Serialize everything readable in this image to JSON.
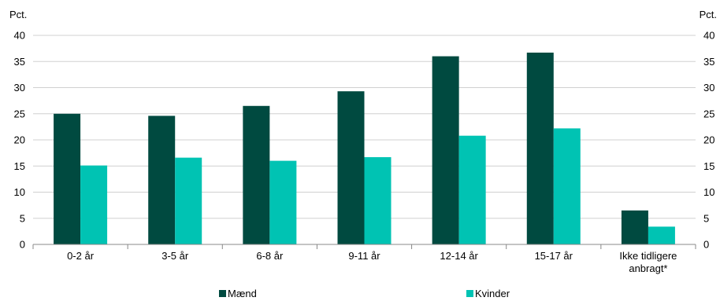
{
  "chart_data": {
    "type": "bar",
    "y_unit_left": "Pct.",
    "y_unit_right": "Pct.",
    "ylim": [
      0,
      40
    ],
    "yticks": [
      0,
      5,
      10,
      15,
      20,
      25,
      30,
      35,
      40
    ],
    "grid": true,
    "legend_position": "bottom",
    "categories": [
      [
        "0-2 år"
      ],
      [
        "3-5 år"
      ],
      [
        "6-8 år"
      ],
      [
        "9-11 år"
      ],
      [
        "12-14 år"
      ],
      [
        "15-17 år"
      ],
      [
        "Ikke tidligere",
        "anbragt*"
      ]
    ],
    "series": [
      {
        "name": "Mænd",
        "color": "#004a40",
        "values": [
          25.0,
          24.6,
          26.5,
          29.3,
          36.0,
          36.7,
          6.5
        ]
      },
      {
        "name": "Kvinder",
        "color": "#00c3b3",
        "values": [
          15.1,
          16.6,
          16.0,
          16.7,
          20.8,
          22.2,
          3.4
        ]
      }
    ]
  }
}
